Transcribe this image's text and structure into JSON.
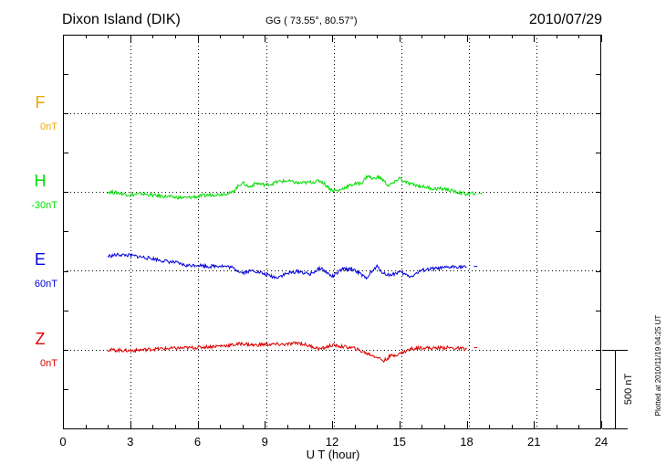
{
  "header": {
    "station": "Dixon Island (DIK)",
    "coords": "GG ( 73.55°,  80.57°)",
    "date": "2010/07/29"
  },
  "side": {
    "plotted": "Plotted at 2010/11/19 04:25 UT",
    "scale_label": "500 nT"
  },
  "chart_data": {
    "type": "line",
    "title": "Dixon Island (DIK)",
    "xlabel": "U T (hour)",
    "ylabel": "",
    "xlim": [
      0,
      24
    ],
    "xticks": [
      "0",
      "3",
      "6",
      "9",
      "12",
      "15",
      "18",
      "21",
      "24"
    ],
    "grid": true,
    "scale_bar_nT": 500,
    "series": [
      {
        "name": "F",
        "offset_label": "0nT",
        "color": "#f0a800",
        "values": []
      },
      {
        "name": "H",
        "offset_label": "-30nT",
        "color": "#00dd00",
        "x": [
          2.0,
          2.5,
          3.0,
          3.5,
          4.0,
          4.5,
          5.0,
          5.5,
          6.0,
          6.5,
          7.0,
          7.5,
          8.0,
          8.3,
          8.6,
          9.0,
          9.3,
          9.6,
          10.0,
          10.5,
          11.0,
          11.5,
          12.0,
          12.3,
          12.6,
          13.0,
          13.3,
          13.6,
          13.8,
          14.0,
          14.2,
          14.5,
          14.8,
          15.0,
          15.2,
          15.5,
          16.0,
          16.5,
          17.0,
          17.5,
          18.0,
          18.4,
          18.6
        ],
        "values": [
          0,
          -8,
          -20,
          -12,
          -22,
          -28,
          -35,
          -38,
          -30,
          -20,
          -15,
          -8,
          60,
          30,
          55,
          45,
          50,
          65,
          70,
          55,
          60,
          70,
          10,
          8,
          30,
          50,
          55,
          105,
          80,
          95,
          85,
          40,
          60,
          90,
          65,
          50,
          35,
          20,
          20,
          0,
          -15,
          -8,
          -10
        ]
      },
      {
        "name": "E",
        "offset_label": "60nT",
        "color": "#0000dd",
        "x": [
          2.0,
          2.5,
          3.0,
          3.5,
          4.0,
          4.5,
          5.0,
          5.5,
          6.0,
          6.5,
          7.0,
          7.5,
          8.0,
          8.5,
          9.0,
          9.5,
          10.0,
          10.5,
          11.0,
          11.5,
          12.0,
          12.5,
          13.0,
          13.5,
          14.0,
          14.3,
          14.6,
          15.0,
          15.5,
          16.0,
          16.5,
          17.0,
          17.5,
          18.0,
          18.4
        ],
        "values": [
          90,
          100,
          95,
          85,
          75,
          60,
          50,
          30,
          35,
          25,
          30,
          20,
          -15,
          0,
          -25,
          -45,
          -20,
          -5,
          -25,
          15,
          -40,
          10,
          5,
          -50,
          25,
          -20,
          -30,
          -10,
          -40,
          0,
          10,
          15,
          25,
          20,
          25
        ]
      },
      {
        "name": "Z",
        "offset_label": "0nT",
        "color": "#dd0000",
        "x": [
          2.0,
          3.0,
          4.0,
          5.0,
          6.0,
          7.0,
          7.5,
          8.0,
          8.5,
          9.0,
          10.0,
          10.5,
          11.0,
          11.5,
          12.0,
          12.5,
          13.0,
          13.5,
          14.0,
          14.3,
          14.6,
          15.0,
          15.5,
          16.0,
          16.5,
          17.0,
          17.5,
          18.0,
          18.4
        ],
        "values": [
          0,
          -5,
          5,
          10,
          15,
          25,
          30,
          40,
          30,
          35,
          35,
          45,
          25,
          5,
          30,
          20,
          10,
          -20,
          -45,
          -70,
          -40,
          -25,
          5,
          15,
          10,
          15,
          10,
          5,
          15
        ]
      }
    ]
  }
}
